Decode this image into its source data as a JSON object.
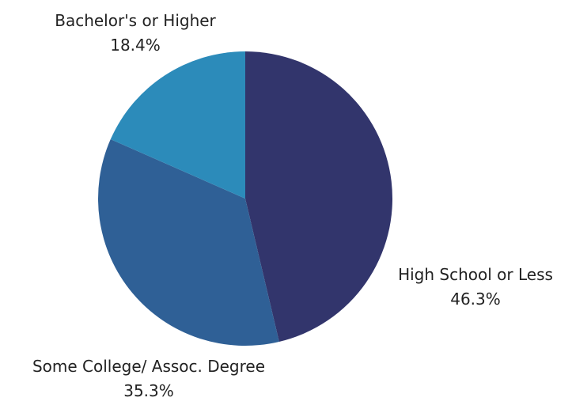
{
  "chart_data": {
    "type": "pie",
    "title": "",
    "start_angle_deg": 0,
    "direction": "clockwise",
    "slices": [
      {
        "label": "High School or Less",
        "value": 46.3,
        "value_label": "46.3%",
        "color": "#32356c"
      },
      {
        "label": "Some College/ Assoc. Degree",
        "value": 35.3,
        "value_label": "35.3%",
        "color": "#2f6096"
      },
      {
        "label": "Bachelor's or Higher",
        "value": 18.4,
        "value_label": "18.4%",
        "color": "#2c8bba"
      }
    ],
    "legend": "none"
  }
}
